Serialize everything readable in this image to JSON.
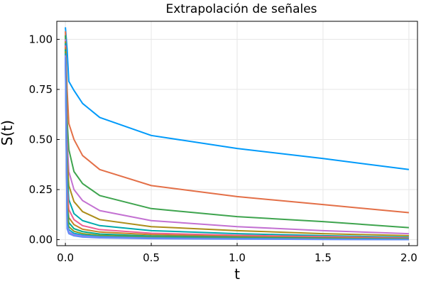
{
  "chart_data": {
    "type": "line",
    "title": "Extrapolación de señales",
    "xlabel": "t",
    "ylabel": "S(t)",
    "xlim": [
      -0.05,
      2.05
    ],
    "ylim": [
      -0.03,
      1.09
    ],
    "xticks": [
      0.0,
      0.5,
      1.0,
      1.5,
      2.0
    ],
    "xtick_labels": [
      "0.0",
      "0.5",
      "1.0",
      "1.5",
      "2.0"
    ],
    "yticks": [
      0.0,
      0.25,
      0.5,
      0.75,
      1.0
    ],
    "ytick_labels": [
      "0.00",
      "0.25",
      "0.50",
      "0.75",
      "1.00"
    ],
    "grid": true,
    "legend": "none",
    "series": [
      {
        "color": "#009AFA",
        "values": [
          [
            0.0,
            1.06
          ],
          [
            0.01,
            0.95
          ],
          [
            0.02,
            0.79
          ],
          [
            0.05,
            0.745
          ],
          [
            0.1,
            0.68
          ],
          [
            0.2,
            0.61
          ],
          [
            0.5,
            0.52
          ],
          [
            1.0,
            0.455
          ],
          [
            1.5,
            0.405
          ],
          [
            2.0,
            0.35
          ]
        ]
      },
      {
        "color": "#E36F47",
        "values": [
          [
            0.0,
            1.04
          ],
          [
            0.01,
            0.75
          ],
          [
            0.02,
            0.58
          ],
          [
            0.05,
            0.5
          ],
          [
            0.1,
            0.42
          ],
          [
            0.2,
            0.35
          ],
          [
            0.5,
            0.27
          ],
          [
            1.0,
            0.215
          ],
          [
            1.5,
            0.175
          ],
          [
            2.0,
            0.135
          ]
        ]
      },
      {
        "color": "#3EA44E",
        "values": [
          [
            0.0,
            1.02
          ],
          [
            0.01,
            0.6
          ],
          [
            0.02,
            0.45
          ],
          [
            0.05,
            0.34
          ],
          [
            0.1,
            0.28
          ],
          [
            0.2,
            0.22
          ],
          [
            0.5,
            0.155
          ],
          [
            1.0,
            0.115
          ],
          [
            1.5,
            0.09
          ],
          [
            2.0,
            0.06
          ]
        ]
      },
      {
        "color": "#C371D2",
        "values": [
          [
            0.0,
            1.0
          ],
          [
            0.01,
            0.5
          ],
          [
            0.02,
            0.34
          ],
          [
            0.05,
            0.25
          ],
          [
            0.1,
            0.195
          ],
          [
            0.2,
            0.145
          ],
          [
            0.5,
            0.095
          ],
          [
            1.0,
            0.065
          ],
          [
            1.5,
            0.045
          ],
          [
            2.0,
            0.03
          ]
        ]
      },
      {
        "color": "#AC8D19",
        "values": [
          [
            0.0,
            0.99
          ],
          [
            0.01,
            0.42
          ],
          [
            0.02,
            0.27
          ],
          [
            0.05,
            0.19
          ],
          [
            0.1,
            0.14
          ],
          [
            0.2,
            0.1
          ],
          [
            0.5,
            0.065
          ],
          [
            1.0,
            0.045
          ],
          [
            1.5,
            0.03
          ],
          [
            2.0,
            0.02
          ]
        ]
      },
      {
        "color": "#00A9AD",
        "values": [
          [
            0.0,
            0.98
          ],
          [
            0.01,
            0.34
          ],
          [
            0.02,
            0.2
          ],
          [
            0.05,
            0.13
          ],
          [
            0.1,
            0.095
          ],
          [
            0.2,
            0.07
          ],
          [
            0.5,
            0.045
          ],
          [
            1.0,
            0.03
          ],
          [
            1.5,
            0.02
          ],
          [
            2.0,
            0.012
          ]
        ]
      },
      {
        "color": "#ED5D92",
        "values": [
          [
            0.0,
            0.97
          ],
          [
            0.01,
            0.27
          ],
          [
            0.02,
            0.15
          ],
          [
            0.05,
            0.1
          ],
          [
            0.1,
            0.07
          ],
          [
            0.2,
            0.05
          ],
          [
            0.5,
            0.032
          ],
          [
            1.0,
            0.022
          ],
          [
            1.5,
            0.015
          ],
          [
            2.0,
            0.008
          ]
        ]
      },
      {
        "color": "#C68225",
        "values": [
          [
            0.0,
            0.96
          ],
          [
            0.01,
            0.21
          ],
          [
            0.02,
            0.11
          ],
          [
            0.05,
            0.075
          ],
          [
            0.1,
            0.052
          ],
          [
            0.2,
            0.038
          ],
          [
            0.5,
            0.025
          ],
          [
            1.0,
            0.016
          ],
          [
            1.5,
            0.01
          ],
          [
            2.0,
            0.005
          ]
        ]
      },
      {
        "color": "#00A98D",
        "values": [
          [
            0.0,
            0.95
          ],
          [
            0.01,
            0.16
          ],
          [
            0.02,
            0.085
          ],
          [
            0.05,
            0.055
          ],
          [
            0.1,
            0.04
          ],
          [
            0.2,
            0.028
          ],
          [
            0.5,
            0.018
          ],
          [
            1.0,
            0.011
          ],
          [
            1.5,
            0.007
          ],
          [
            2.0,
            0.003
          ]
        ]
      },
      {
        "color": "#8E971D",
        "values": [
          [
            0.0,
            0.94
          ],
          [
            0.01,
            0.12
          ],
          [
            0.02,
            0.065
          ],
          [
            0.05,
            0.042
          ],
          [
            0.1,
            0.03
          ],
          [
            0.2,
            0.021
          ],
          [
            0.5,
            0.013
          ],
          [
            1.0,
            0.008
          ],
          [
            1.5,
            0.005
          ],
          [
            2.0,
            0.002
          ]
        ]
      },
      {
        "color": "#00A8CB",
        "values": [
          [
            0.0,
            0.93
          ],
          [
            0.01,
            0.09
          ],
          [
            0.02,
            0.05
          ],
          [
            0.05,
            0.032
          ],
          [
            0.1,
            0.023
          ],
          [
            0.2,
            0.016
          ],
          [
            0.5,
            0.01
          ],
          [
            1.0,
            0.006
          ],
          [
            1.5,
            0.003
          ],
          [
            2.0,
            0.001
          ]
        ]
      },
      {
        "color": "#9B7FE9",
        "values": [
          [
            0.0,
            0.92
          ],
          [
            0.01,
            0.07
          ],
          [
            0.02,
            0.038
          ],
          [
            0.05,
            0.025
          ],
          [
            0.1,
            0.018
          ],
          [
            0.2,
            0.012
          ],
          [
            0.5,
            0.007
          ],
          [
            1.0,
            0.004
          ],
          [
            1.5,
            0.002
          ],
          [
            2.0,
            0.0
          ]
        ]
      },
      {
        "color": "#618DF6",
        "values": [
          [
            0.0,
            0.91
          ],
          [
            0.01,
            0.055
          ],
          [
            0.02,
            0.03
          ],
          [
            0.05,
            0.019
          ],
          [
            0.1,
            0.013
          ],
          [
            0.2,
            0.009
          ],
          [
            0.5,
            0.005
          ],
          [
            1.0,
            0.003
          ],
          [
            1.5,
            0.001
          ],
          [
            2.0,
            0.0
          ]
        ]
      }
    ]
  }
}
